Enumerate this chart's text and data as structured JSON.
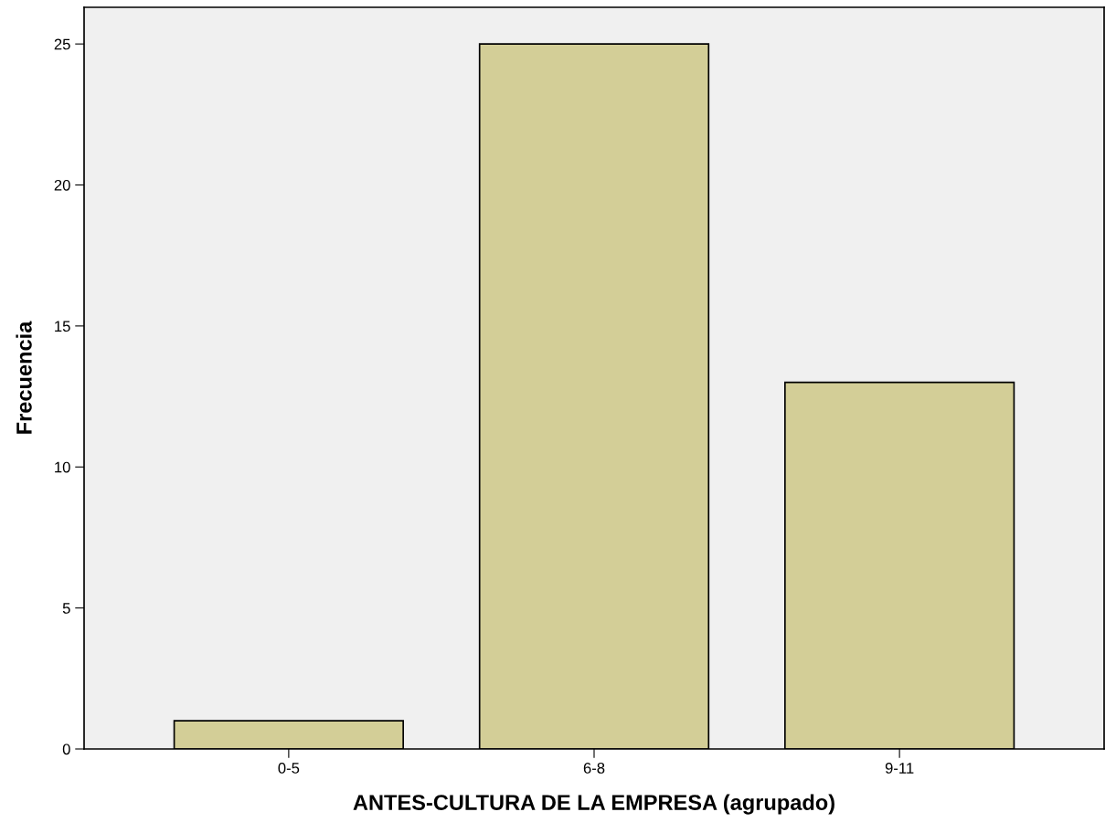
{
  "chart_data": {
    "type": "bar",
    "xlabel": "ANTES-CULTURA DE LA EMPRESA (agrupado)",
    "ylabel": "Frecuencia",
    "categories": [
      "0-5",
      "6-8",
      "9-11"
    ],
    "values": [
      1,
      25,
      13
    ],
    "color": "#d3ce97",
    "ylim": [
      0,
      26.3
    ],
    "yticks": [
      0,
      5,
      10,
      15,
      20,
      25
    ],
    "grid": false,
    "legend": false
  }
}
